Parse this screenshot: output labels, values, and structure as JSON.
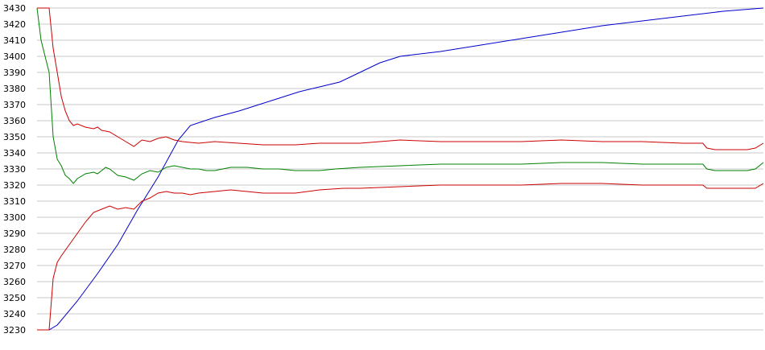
{
  "chart_data": {
    "type": "line",
    "ylim": [
      3230,
      3430
    ],
    "yticks": [
      3230,
      3240,
      3250,
      3260,
      3270,
      3280,
      3290,
      3300,
      3310,
      3320,
      3330,
      3340,
      3350,
      3360,
      3370,
      3380,
      3390,
      3400,
      3410,
      3420,
      3430
    ],
    "x_range": [
      0,
      180
    ],
    "grid": true,
    "legend": "none",
    "colors": {
      "blue": "#0000cc",
      "green": "#008000",
      "red": "#cc0000",
      "grid": "#c8c8c8"
    },
    "series": [
      {
        "color": "blue",
        "points": [
          [
            0,
            3230
          ],
          [
            3,
            3230
          ],
          [
            5,
            3233
          ],
          [
            10,
            3248
          ],
          [
            15,
            3265
          ],
          [
            20,
            3283
          ],
          [
            25,
            3305
          ],
          [
            30,
            3325
          ],
          [
            35,
            3348
          ],
          [
            38,
            3357
          ],
          [
            44,
            3362
          ],
          [
            50,
            3366
          ],
          [
            55,
            3370
          ],
          [
            60,
            3374
          ],
          [
            65,
            3378
          ],
          [
            70,
            3381
          ],
          [
            75,
            3384
          ],
          [
            80,
            3390
          ],
          [
            85,
            3396
          ],
          [
            90,
            3400
          ],
          [
            100,
            3403
          ],
          [
            110,
            3407
          ],
          [
            120,
            3411
          ],
          [
            130,
            3415
          ],
          [
            140,
            3419
          ],
          [
            150,
            3422
          ],
          [
            160,
            3425
          ],
          [
            170,
            3428
          ],
          [
            180,
            3430
          ]
        ]
      },
      {
        "color": "green",
        "points": [
          [
            0,
            3430
          ],
          [
            1,
            3410
          ],
          [
            2,
            3400
          ],
          [
            3,
            3390
          ],
          [
            4,
            3350
          ],
          [
            5,
            3336
          ],
          [
            6,
            3332
          ],
          [
            7,
            3326
          ],
          [
            8,
            3324
          ],
          [
            9,
            3321
          ],
          [
            10,
            3324
          ],
          [
            12,
            3327
          ],
          [
            14,
            3328
          ],
          [
            15,
            3327
          ],
          [
            16,
            3329
          ],
          [
            17,
            3331
          ],
          [
            18,
            3330
          ],
          [
            19,
            3328
          ],
          [
            20,
            3326
          ],
          [
            22,
            3325
          ],
          [
            24,
            3323
          ],
          [
            26,
            3327
          ],
          [
            28,
            3329
          ],
          [
            30,
            3328
          ],
          [
            32,
            3331
          ],
          [
            34,
            3332
          ],
          [
            36,
            3331
          ],
          [
            38,
            3330
          ],
          [
            40,
            3330
          ],
          [
            42,
            3329
          ],
          [
            44,
            3329
          ],
          [
            46,
            3330
          ],
          [
            48,
            3331
          ],
          [
            52,
            3331
          ],
          [
            56,
            3330
          ],
          [
            60,
            3330
          ],
          [
            64,
            3329
          ],
          [
            70,
            3329
          ],
          [
            74,
            3330
          ],
          [
            80,
            3331
          ],
          [
            90,
            3332
          ],
          [
            100,
            3333
          ],
          [
            110,
            3333
          ],
          [
            120,
            3333
          ],
          [
            130,
            3334
          ],
          [
            140,
            3334
          ],
          [
            150,
            3333
          ],
          [
            160,
            3333
          ],
          [
            165,
            3333
          ],
          [
            166,
            3330
          ],
          [
            168,
            3329
          ],
          [
            176,
            3329
          ],
          [
            178,
            3330
          ],
          [
            180,
            3334
          ]
        ]
      },
      {
        "color": "red",
        "points": [
          [
            0,
            3430
          ],
          [
            3,
            3430
          ],
          [
            4,
            3405
          ],
          [
            5,
            3390
          ],
          [
            6,
            3375
          ],
          [
            7,
            3366
          ],
          [
            8,
            3360
          ],
          [
            9,
            3357
          ],
          [
            10,
            3358
          ],
          [
            12,
            3356
          ],
          [
            14,
            3355
          ],
          [
            15,
            3356
          ],
          [
            16,
            3354
          ],
          [
            18,
            3353
          ],
          [
            20,
            3350
          ],
          [
            22,
            3347
          ],
          [
            24,
            3344
          ],
          [
            26,
            3348
          ],
          [
            28,
            3347
          ],
          [
            30,
            3349
          ],
          [
            32,
            3350
          ],
          [
            34,
            3348
          ],
          [
            36,
            3347
          ],
          [
            40,
            3346
          ],
          [
            44,
            3347
          ],
          [
            50,
            3346
          ],
          [
            56,
            3345
          ],
          [
            64,
            3345
          ],
          [
            70,
            3346
          ],
          [
            76,
            3346
          ],
          [
            80,
            3346
          ],
          [
            90,
            3348
          ],
          [
            100,
            3347
          ],
          [
            110,
            3347
          ],
          [
            120,
            3347
          ],
          [
            130,
            3348
          ],
          [
            140,
            3347
          ],
          [
            150,
            3347
          ],
          [
            160,
            3346
          ],
          [
            165,
            3346
          ],
          [
            166,
            3343
          ],
          [
            168,
            3342
          ],
          [
            176,
            3342
          ],
          [
            178,
            3343
          ],
          [
            180,
            3346
          ]
        ]
      },
      {
        "color": "red",
        "points": [
          [
            0,
            3230
          ],
          [
            3,
            3230
          ],
          [
            4,
            3262
          ],
          [
            5,
            3272
          ],
          [
            6,
            3276
          ],
          [
            8,
            3283
          ],
          [
            10,
            3290
          ],
          [
            12,
            3297
          ],
          [
            14,
            3303
          ],
          [
            16,
            3305
          ],
          [
            18,
            3307
          ],
          [
            20,
            3305
          ],
          [
            22,
            3306
          ],
          [
            24,
            3305
          ],
          [
            26,
            3310
          ],
          [
            28,
            3312
          ],
          [
            30,
            3315
          ],
          [
            32,
            3316
          ],
          [
            34,
            3315
          ],
          [
            36,
            3315
          ],
          [
            38,
            3314
          ],
          [
            40,
            3315
          ],
          [
            44,
            3316
          ],
          [
            48,
            3317
          ],
          [
            52,
            3316
          ],
          [
            56,
            3315
          ],
          [
            64,
            3315
          ],
          [
            70,
            3317
          ],
          [
            76,
            3318
          ],
          [
            80,
            3318
          ],
          [
            90,
            3319
          ],
          [
            100,
            3320
          ],
          [
            110,
            3320
          ],
          [
            120,
            3320
          ],
          [
            130,
            3321
          ],
          [
            140,
            3321
          ],
          [
            150,
            3320
          ],
          [
            160,
            3320
          ],
          [
            165,
            3320
          ],
          [
            166,
            3318
          ],
          [
            168,
            3318
          ],
          [
            176,
            3318
          ],
          [
            178,
            3318
          ],
          [
            180,
            3321
          ]
        ]
      }
    ]
  }
}
